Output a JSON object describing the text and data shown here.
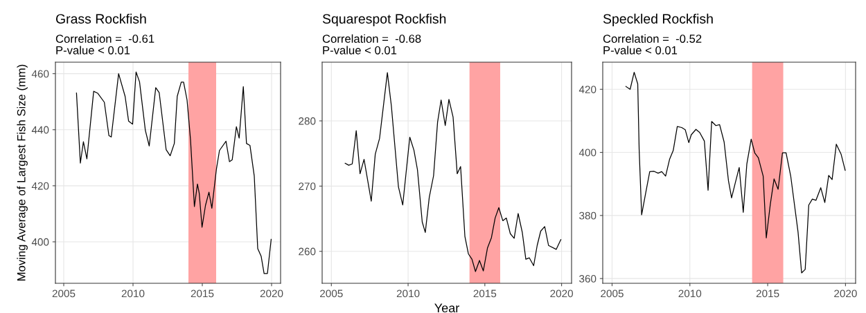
{
  "chart_data": [
    {
      "type": "line",
      "title": "Grass Rockfish",
      "subtitle": "Correlation =  -0.61\nP-value < 0.01",
      "ylabel": "Moving Average of Largest Fish Size (mm)",
      "x": [
        2005.92,
        2006.2,
        2006.42,
        2006.67,
        2007.16,
        2007.46,
        2007.93,
        2008.26,
        2008.43,
        2008.96,
        2009.43,
        2009.68,
        2009.97,
        2010.22,
        2010.47,
        2010.89,
        2011.17,
        2011.64,
        2011.89,
        2012.39,
        2012.68,
        2012.98,
        2013.19,
        2013.48,
        2013.65,
        2013.9,
        2014.15,
        2014.43,
        2014.65,
        2014.78,
        2014.98,
        2015.23,
        2015.48,
        2015.69,
        2016.02,
        2016.24,
        2016.71,
        2016.96,
        2017.16,
        2017.46,
        2017.66,
        2017.96,
        2018.19,
        2018.44,
        2018.75,
        2019.0,
        2019.25,
        2019.46,
        2019.7,
        2019.97
      ],
      "series": [
        {
          "color": "#000000",
          "values": [
            453.1,
            428.1,
            435.7,
            429.6,
            453.7,
            453.0,
            449.8,
            437.9,
            437.4,
            460.0,
            451.9,
            443.1,
            442.0,
            460.6,
            457.1,
            439.8,
            434.2,
            455.0,
            453.2,
            432.9,
            430.7,
            435.1,
            451.9,
            457.0,
            457.0,
            450.6,
            436.4,
            412.6,
            420.6,
            417.3,
            405.2,
            413.0,
            417.7,
            412.0,
            426.0,
            432.6,
            435.9,
            428.6,
            429.3,
            441.1,
            437.0,
            455.4,
            435.1,
            434.4,
            423.5,
            397.6,
            394.8,
            388.7,
            388.7,
            400.9
          ]
        }
      ],
      "xlim": [
        2004.4,
        2020.65
      ],
      "xticks": [
        2005,
        2010,
        2015,
        2020
      ],
      "ylim": [
        385.2,
        464.1
      ],
      "yticks": [
        400,
        420,
        440,
        460
      ],
      "bands": [
        {
          "axis": "x",
          "from": 2014,
          "to": 2016,
          "color": "#ffa3a3"
        }
      ],
      "grid": true,
      "marker": "none",
      "line_style": "solid"
    },
    {
      "type": "line",
      "title": "Squarespot Rockfish",
      "subtitle": "Correlation =  -0.68\nP-value < 0.01",
      "xlabel": "Year",
      "x": [
        2005.9,
        2006.13,
        2006.36,
        2006.62,
        2006.87,
        2007.13,
        2007.6,
        2007.86,
        2008.14,
        2008.65,
        2008.91,
        2009.37,
        2009.65,
        2010.11,
        2010.38,
        2010.61,
        2010.92,
        2011.12,
        2011.38,
        2011.66,
        2011.92,
        2012.15,
        2012.42,
        2012.66,
        2012.93,
        2013.2,
        2013.42,
        2013.7,
        2013.93,
        2014.16,
        2014.39,
        2014.65,
        2014.9,
        2015.17,
        2015.43,
        2015.67,
        2015.91,
        2016.17,
        2016.4,
        2016.66,
        2016.91,
        2017.17,
        2017.44,
        2017.67,
        2017.9,
        2018.18,
        2018.41,
        2018.64,
        2018.9,
        2019.15,
        2019.65,
        2019.95
      ],
      "series": [
        {
          "color": "#000000",
          "values": [
            273.5,
            273.2,
            273.4,
            278.5,
            271.9,
            274.1,
            267.7,
            274.9,
            277.3,
            287.4,
            282.3,
            269.9,
            267.1,
            277.5,
            275.5,
            272.5,
            264.5,
            262.9,
            268.3,
            271.6,
            279.8,
            283.2,
            279.3,
            283.3,
            280.6,
            271.9,
            273.0,
            262.3,
            259.6,
            258.8,
            256.9,
            258.6,
            257.0,
            260.5,
            262.1,
            265.1,
            266.7,
            264.7,
            265.1,
            262.7,
            262.0,
            265.8,
            262.9,
            258.8,
            259.0,
            257.8,
            260.9,
            263.1,
            263.8,
            260.9,
            260.3,
            261.8
          ]
        }
      ],
      "xlim": [
        2004.4,
        2020.65
      ],
      "xticks": [
        2005,
        2010,
        2015,
        2020
      ],
      "ylim": [
        255.1,
        289.0
      ],
      "yticks": [
        260,
        270,
        280
      ],
      "bands": [
        {
          "axis": "x",
          "from": 2014,
          "to": 2016,
          "color": "#ffa3a3"
        }
      ],
      "grid": true,
      "marker": "none",
      "line_style": "solid"
    },
    {
      "type": "line",
      "title": "Speckled Rockfish",
      "subtitle": "Correlation =  -0.52\nP-value < 0.01",
      "x": [
        2005.89,
        2006.16,
        2006.42,
        2006.65,
        2006.74,
        2006.9,
        2007.16,
        2007.42,
        2007.7,
        2007.96,
        2008.19,
        2008.44,
        2008.7,
        2008.93,
        2009.19,
        2009.47,
        2009.7,
        2009.93,
        2010.09,
        2010.39,
        2010.63,
        2010.93,
        2011.17,
        2011.4,
        2011.67,
        2011.91,
        2012.2,
        2012.48,
        2012.68,
        2012.91,
        2013.17,
        2013.43,
        2013.66,
        2013.94,
        2014.17,
        2014.4,
        2014.71,
        2014.91,
        2015.17,
        2015.41,
        2015.67,
        2015.95,
        2016.18,
        2016.48,
        2016.95,
        2017.18,
        2017.41,
        2017.64,
        2017.87,
        2018.1,
        2018.41,
        2018.67,
        2018.92,
        2019.14,
        2019.41,
        2019.72,
        2019.98
      ],
      "series": [
        {
          "color": "#000000",
          "values": [
            420.9,
            420.0,
            425.4,
            421.7,
            401.0,
            380.2,
            387.1,
            393.9,
            394.0,
            393.4,
            393.9,
            392.5,
            397.9,
            400.6,
            408.2,
            407.9,
            407.2,
            403.1,
            405.6,
            407.3,
            406.3,
            403.6,
            388.0,
            409.8,
            408.5,
            408.8,
            403.3,
            391.0,
            385.6,
            390.2,
            395.2,
            381.0,
            396.3,
            404.2,
            399.8,
            398.3,
            392.5,
            372.9,
            383.6,
            391.6,
            388.3,
            399.9,
            399.9,
            392.5,
            374.8,
            361.8,
            362.9,
            383.3,
            385.2,
            384.8,
            388.8,
            384.1,
            392.7,
            391.4,
            402.6,
            399.4,
            394.3
          ]
        }
      ],
      "xlim": [
        2004.4,
        2020.65
      ],
      "xticks": [
        2005,
        2010,
        2015,
        2020
      ],
      "ylim": [
        358.5,
        428.6
      ],
      "yticks": [
        360,
        380,
        400,
        420
      ],
      "bands": [
        {
          "axis": "x",
          "from": 2014,
          "to": 2016,
          "color": "#ffa3a3"
        }
      ],
      "grid": true,
      "marker": "none",
      "line_style": "solid"
    }
  ]
}
